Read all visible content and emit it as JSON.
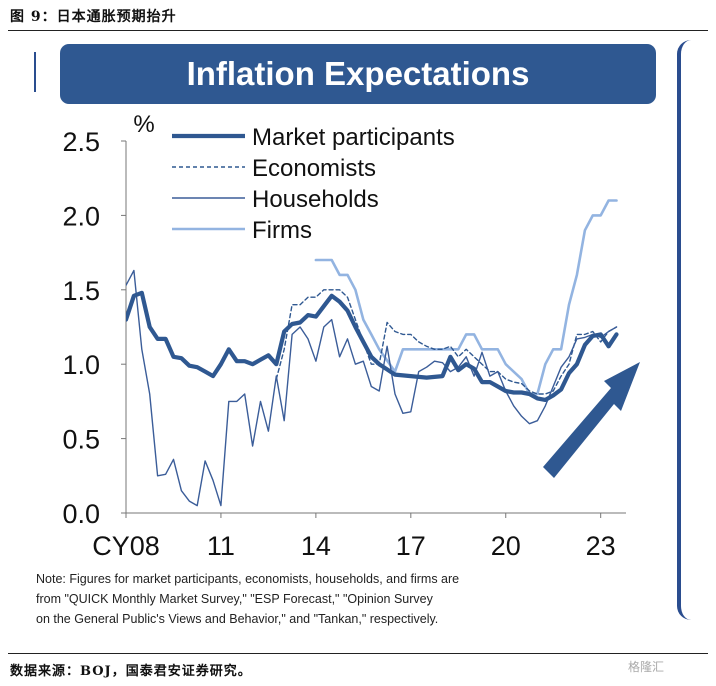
{
  "caption": "图 9：日本通胀预期抬升",
  "source": "数据来源：BOJ，国泰君安证券研究。",
  "watermark": "格隆汇",
  "banner_title": "Inflation Expectations",
  "note_lines": [
    "Note: Figures for market participants, economists, households, and firms are",
    "from \"QUICK Monthly Market Survey,\" \"ESP Forecast,\" \"Opinion Survey",
    "on the General Public's Views and Behavior,\" and \"Tankan,\" respectively."
  ],
  "chart_data": {
    "type": "line",
    "title": "Inflation Expectations",
    "ylabel": "%",
    "xlabel": "",
    "ylim": [
      0,
      2.5
    ],
    "xlim": [
      2008,
      2023.8
    ],
    "yticks": [
      "0.0",
      "0.5",
      "1.0",
      "1.5",
      "2.0",
      "2.5"
    ],
    "yticks_values": [
      0,
      0.5,
      1.0,
      1.5,
      2.0,
      2.5
    ],
    "xticks": [
      "CY08",
      "11",
      "14",
      "17",
      "20",
      "23"
    ],
    "xticks_values": [
      2008,
      2011,
      2014,
      2017,
      2020,
      2023
    ],
    "grid": false,
    "legend_position": "top-left",
    "annotation": "upward arrow (2021–2023)",
    "series": [
      {
        "name": "Market participants",
        "color": "#2f5891",
        "style": "thick",
        "x": [
          2008.0,
          2008.25,
          2008.5,
          2008.75,
          2009.0,
          2009.25,
          2009.5,
          2009.75,
          2010.0,
          2010.25,
          2010.5,
          2010.75,
          2011.0,
          2011.25,
          2011.5,
          2011.75,
          2012.0,
          2012.25,
          2012.5,
          2012.75,
          2013.0,
          2013.25,
          2013.5,
          2013.75,
          2014.0,
          2014.25,
          2014.5,
          2014.75,
          2015.0,
          2015.25,
          2015.5,
          2015.75,
          2016.0,
          2016.5,
          2017.0,
          2017.5,
          2018.0,
          2018.25,
          2018.5,
          2018.75,
          2019.0,
          2019.25,
          2019.5,
          2019.75,
          2020.0,
          2020.25,
          2020.5,
          2020.75,
          2021.0,
          2021.25,
          2021.5,
          2021.75,
          2022.0,
          2022.25,
          2022.5,
          2022.75,
          2023.0,
          2023.25,
          2023.5
        ],
        "y": [
          1.3,
          1.46,
          1.48,
          1.25,
          1.17,
          1.17,
          1.05,
          1.04,
          0.99,
          0.98,
          0.95,
          0.92,
          1.0,
          1.1,
          1.02,
          1.02,
          1.0,
          1.03,
          1.06,
          1.0,
          1.22,
          1.27,
          1.28,
          1.33,
          1.32,
          1.39,
          1.46,
          1.42,
          1.36,
          1.25,
          1.15,
          1.05,
          1.0,
          0.93,
          0.92,
          0.91,
          0.92,
          1.05,
          0.96,
          1.0,
          0.97,
          0.88,
          0.88,
          0.85,
          0.82,
          0.81,
          0.81,
          0.8,
          0.77,
          0.76,
          0.79,
          0.83,
          0.94,
          1.0,
          1.13,
          1.19,
          1.2,
          1.12,
          1.2
        ]
      },
      {
        "name": "Economists",
        "color": "#2f5891",
        "style": "dashed",
        "x": [
          2012.75,
          2013.0,
          2013.25,
          2013.5,
          2013.75,
          2014.0,
          2014.25,
          2014.5,
          2014.75,
          2015.0,
          2015.25,
          2015.5,
          2015.75,
          2016.0,
          2016.25,
          2016.5,
          2016.75,
          2017.0,
          2017.25,
          2017.5,
          2017.75,
          2018.0,
          2018.25,
          2018.5,
          2018.75,
          2019.0,
          2019.25,
          2019.5,
          2019.75,
          2020.0,
          2020.25,
          2020.5,
          2020.75,
          2021.0,
          2021.25,
          2021.5,
          2021.75,
          2022.0,
          2022.25,
          2022.5,
          2022.75,
          2023.0,
          2023.25,
          2023.5
        ],
        "y": [
          0.9,
          1.1,
          1.4,
          1.4,
          1.45,
          1.45,
          1.5,
          1.5,
          1.5,
          1.45,
          1.3,
          1.15,
          1.0,
          1.0,
          1.28,
          1.22,
          1.2,
          1.2,
          1.15,
          1.12,
          1.1,
          1.1,
          1.12,
          1.05,
          1.1,
          1.05,
          1.0,
          0.95,
          0.95,
          0.9,
          0.88,
          0.87,
          0.82,
          0.8,
          0.8,
          0.82,
          0.92,
          1.0,
          1.2,
          1.2,
          1.22,
          1.15,
          1.22,
          1.25
        ]
      },
      {
        "name": "Households",
        "color": "#3b5d99",
        "style": "thin",
        "x": [
          2008.0,
          2008.25,
          2008.5,
          2008.75,
          2009.0,
          2009.25,
          2009.5,
          2009.75,
          2010.0,
          2010.25,
          2010.5,
          2010.75,
          2011.0,
          2011.25,
          2011.5,
          2011.75,
          2012.0,
          2012.25,
          2012.5,
          2012.75,
          2013.0,
          2013.25,
          2013.5,
          2013.75,
          2014.0,
          2014.25,
          2014.5,
          2014.75,
          2015.0,
          2015.25,
          2015.5,
          2015.75,
          2016.0,
          2016.25,
          2016.5,
          2016.75,
          2017.0,
          2017.25,
          2017.5,
          2017.75,
          2018.0,
          2018.25,
          2018.5,
          2018.75,
          2019.0,
          2019.25,
          2019.5,
          2019.75,
          2020.0,
          2020.25,
          2020.5,
          2020.75,
          2021.0,
          2021.25,
          2021.5,
          2021.75,
          2022.0,
          2022.25,
          2022.5,
          2022.75,
          2023.0,
          2023.25,
          2023.5
        ],
        "y": [
          1.53,
          1.63,
          1.1,
          0.8,
          0.25,
          0.26,
          0.36,
          0.15,
          0.08,
          0.05,
          0.35,
          0.22,
          0.05,
          0.75,
          0.75,
          0.8,
          0.45,
          0.75,
          0.55,
          0.92,
          0.62,
          1.2,
          1.25,
          1.17,
          1.02,
          1.25,
          1.3,
          1.05,
          1.17,
          1.0,
          1.02,
          0.85,
          0.82,
          1.12,
          0.8,
          0.67,
          0.68,
          0.95,
          0.98,
          1.02,
          1.01,
          0.95,
          0.98,
          1.05,
          0.92,
          1.08,
          0.92,
          0.95,
          0.82,
          0.72,
          0.65,
          0.6,
          0.62,
          0.72,
          0.85,
          0.98,
          1.05,
          1.17,
          1.18,
          1.2,
          1.18,
          1.22,
          1.25
        ]
      },
      {
        "name": "Firms",
        "color": "#93b4e1",
        "style": "medium",
        "x": [
          2014.0,
          2014.5,
          2014.75,
          2015.0,
          2015.25,
          2015.5,
          2015.75,
          2016.0,
          2016.5,
          2016.75,
          2017.0,
          2017.5,
          2018.0,
          2018.25,
          2018.5,
          2018.75,
          2019.0,
          2019.25,
          2019.5,
          2019.75,
          2020.0,
          2020.5,
          2020.75,
          2021.0,
          2021.25,
          2021.5,
          2021.75,
          2022.0,
          2022.25,
          2022.5,
          2022.75,
          2023.0,
          2023.25,
          2023.5
        ],
        "y": [
          1.7,
          1.7,
          1.6,
          1.6,
          1.5,
          1.3,
          1.2,
          1.1,
          0.95,
          1.1,
          1.1,
          1.1,
          1.1,
          1.1,
          1.1,
          1.2,
          1.2,
          1.1,
          1.1,
          1.1,
          1.0,
          0.9,
          0.8,
          0.8,
          1.0,
          1.1,
          1.1,
          1.4,
          1.6,
          1.9,
          2.0,
          2.0,
          2.1,
          2.1
        ]
      }
    ]
  }
}
